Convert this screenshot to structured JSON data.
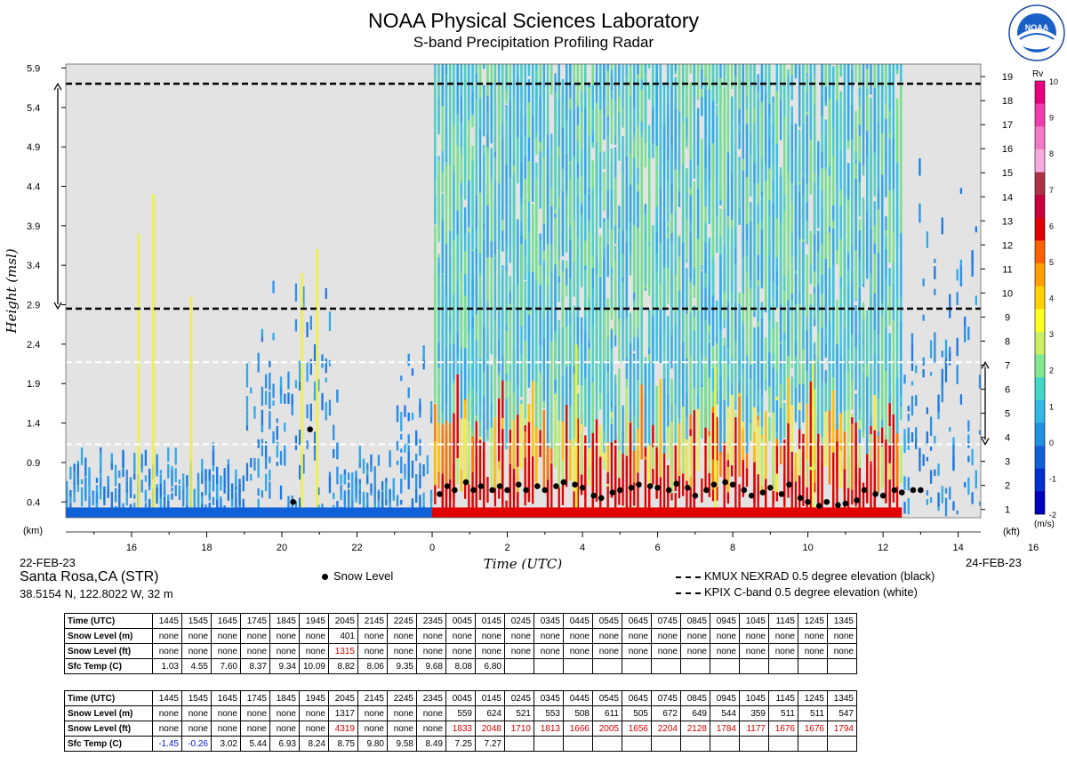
{
  "header": {
    "title": "NOAA Physical Sciences Laboratory",
    "subtitle": "S-band Precipitation Profiling Radar",
    "logo_text": "NOAA"
  },
  "chart_data": {
    "type": "heatmap",
    "ylabel": "Height (msl)",
    "xlabel": "Time (UTC)",
    "y_unit_left": "(km)",
    "y_unit_right": "(kft)",
    "y_ticks_km": [
      "0.4",
      "0.9",
      "1.4",
      "1.9",
      "2.4",
      "2.9",
      "3.4",
      "3.9",
      "4.4",
      "4.9",
      "5.4",
      "5.9"
    ],
    "y_ticks_kft": [
      "1",
      "2",
      "3",
      "4",
      "5",
      "6",
      "7",
      "8",
      "9",
      "10",
      "11",
      "12",
      "13",
      "14",
      "15",
      "16",
      "17",
      "18",
      "19"
    ],
    "ylim_km": [
      0.2,
      5.95
    ],
    "x_ticks": [
      "16",
      "18",
      "20",
      "22",
      "0",
      "2",
      "4",
      "6",
      "8",
      "10",
      "12",
      "14",
      "16",
      "18",
      "20",
      "22",
      "0",
      "2",
      "4",
      "6",
      "8",
      "10",
      "12",
      "14"
    ],
    "x_start_label": "22-FEB-23",
    "x_end_label": "24-FEB-23",
    "colorbar": {
      "title": "Rv",
      "unit": "(m/s)",
      "ticks": [
        "10",
        "9",
        "8",
        "7",
        "6",
        "5",
        "4",
        "3",
        "2",
        "1",
        "0",
        "-1",
        "-2"
      ],
      "colors": [
        "#e6007e",
        "#f03cb0",
        "#f578c8",
        "#f8aadc",
        "#b0304a",
        "#c8003c",
        "#e00000",
        "#ff6000",
        "#ffa000",
        "#ffd200",
        "#ffff20",
        "#c8f060",
        "#80e890",
        "#40d8c8",
        "#30b8e8",
        "#2090e0",
        "#1060d8",
        "#0030d0",
        "#0000c0"
      ]
    },
    "reference_lines": [
      {
        "name": "KMUX NEXRAD 0.5 degree elevation (black)",
        "color": "#000000",
        "levels_km": [
          5.7,
          2.85
        ]
      },
      {
        "name": "KPIX C-band 0.5 degree elevation (white)",
        "color": "#ffffff",
        "levels_km": [
          2.17,
          1.13
        ]
      }
    ],
    "series": [
      {
        "name": "Snow Level",
        "type": "scatter",
        "points": [
          [
            20.3,
            0.4
          ],
          [
            20.75,
            1.32
          ],
          [
            24.2,
            0.5
          ],
          [
            24.4,
            0.6
          ],
          [
            24.6,
            0.55
          ],
          [
            24.9,
            0.65
          ],
          [
            25.1,
            0.55
          ],
          [
            25.3,
            0.6
          ],
          [
            25.6,
            0.55
          ],
          [
            25.8,
            0.6
          ],
          [
            26.0,
            0.55
          ],
          [
            26.3,
            0.62
          ],
          [
            26.5,
            0.55
          ],
          [
            26.8,
            0.6
          ],
          [
            27.0,
            0.55
          ],
          [
            27.3,
            0.6
          ],
          [
            27.5,
            0.65
          ],
          [
            27.8,
            0.62
          ],
          [
            28.0,
            0.58
          ],
          [
            28.3,
            0.48
          ],
          [
            28.5,
            0.45
          ],
          [
            28.8,
            0.52
          ],
          [
            29.0,
            0.55
          ],
          [
            29.3,
            0.58
          ],
          [
            29.5,
            0.62
          ],
          [
            29.8,
            0.6
          ],
          [
            30.0,
            0.58
          ],
          [
            30.3,
            0.55
          ],
          [
            30.5,
            0.63
          ],
          [
            30.8,
            0.58
          ],
          [
            31.0,
            0.48
          ],
          [
            31.3,
            0.55
          ],
          [
            31.5,
            0.62
          ],
          [
            31.8,
            0.65
          ],
          [
            32.0,
            0.62
          ],
          [
            32.3,
            0.55
          ],
          [
            32.5,
            0.48
          ],
          [
            32.8,
            0.52
          ],
          [
            33.0,
            0.58
          ],
          [
            33.3,
            0.5
          ],
          [
            33.5,
            0.62
          ],
          [
            33.8,
            0.45
          ],
          [
            34.0,
            0.4
          ],
          [
            34.3,
            0.35
          ],
          [
            34.5,
            0.4
          ],
          [
            34.8,
            0.36
          ],
          [
            35.0,
            0.38
          ],
          [
            35.3,
            0.42
          ],
          [
            35.5,
            0.55
          ],
          [
            35.8,
            0.5
          ],
          [
            36.0,
            0.48
          ],
          [
            36.3,
            0.55
          ],
          [
            36.5,
            0.52
          ],
          [
            36.8,
            0.55
          ],
          [
            37.0,
            0.55
          ]
        ]
      }
    ]
  },
  "station": {
    "name": "Santa Rosa,CA (STR)",
    "coords": "38.5154 N, 122.8022 W, 32 m"
  },
  "legend": {
    "snow_level": "Snow Level",
    "kmux": "KMUX NEXRAD 0.5 degree elevation (black)",
    "kpix": "KPIX C-band 0.5 degree elevation (white)"
  },
  "tables": [
    {
      "rows": [
        {
          "label": "Time (UTC)",
          "values": [
            "1445",
            "1545",
            "1645",
            "1745",
            "1845",
            "1945",
            "2045",
            "2145",
            "2245",
            "2345",
            "0045",
            "0145",
            "0245",
            "0345",
            "0445",
            "0545",
            "0645",
            "0745",
            "0845",
            "0945",
            "1045",
            "1145",
            "1245",
            "1345"
          ]
        },
        {
          "label": "Snow Level (m)",
          "values": [
            "none",
            "none",
            "none",
            "none",
            "none",
            "none",
            "401",
            "none",
            "none",
            "none",
            "none",
            "none",
            "none",
            "none",
            "none",
            "none",
            "none",
            "none",
            "none",
            "none",
            "none",
            "none",
            "none",
            "none"
          ]
        },
        {
          "label": "Snow Level (ft)",
          "values": [
            "none",
            "none",
            "none",
            "none",
            "none",
            "none",
            "1315",
            "none",
            "none",
            "none",
            "none",
            "none",
            "none",
            "none",
            "none",
            "none",
            "none",
            "none",
            "none",
            "none",
            "none",
            "none",
            "none",
            "none"
          ]
        },
        {
          "label": "Sfc Temp (C)",
          "values": [
            "1.03",
            "4.55",
            "7.60",
            "8.37",
            "9.34",
            "10.09",
            "8.82",
            "8.06",
            "9.35",
            "9.68",
            "8.08",
            "6.80",
            "",
            "",
            "",
            "",
            "",
            "",
            "",
            "",
            "",
            "",
            "",
            ""
          ]
        }
      ]
    },
    {
      "rows": [
        {
          "label": "Time (UTC)",
          "values": [
            "1445",
            "1545",
            "1645",
            "1745",
            "1845",
            "1945",
            "2045",
            "2145",
            "2245",
            "2345",
            "0045",
            "0145",
            "0245",
            "0345",
            "0445",
            "0545",
            "0645",
            "0745",
            "0845",
            "0945",
            "1045",
            "1145",
            "1245",
            "1345"
          ]
        },
        {
          "label": "Snow Level (m)",
          "values": [
            "none",
            "none",
            "none",
            "none",
            "none",
            "none",
            "1317",
            "none",
            "none",
            "none",
            "559",
            "624",
            "521",
            "553",
            "508",
            "611",
            "505",
            "672",
            "649",
            "544",
            "359",
            "511",
            "511",
            "547"
          ]
        },
        {
          "label": "Snow Level (ft)",
          "values": [
            "none",
            "none",
            "none",
            "none",
            "none",
            "none",
            "4319",
            "none",
            "none",
            "none",
            "1833",
            "2048",
            "1710",
            "1813",
            "1666",
            "2005",
            "1656",
            "2204",
            "2128",
            "1784",
            "1177",
            "1676",
            "1676",
            "1794"
          ]
        },
        {
          "label": "Sfc Temp (C)",
          "values": [
            "-1.45",
            "-0.26",
            "3.02",
            "5.44",
            "6.93",
            "8.24",
            "8.75",
            "9.80",
            "9.58",
            "8.49",
            "7.25",
            "7.27",
            "",
            "",
            "",
            "",
            "",
            "",
            "",
            "",
            "",
            "",
            "",
            ""
          ]
        }
      ]
    }
  ]
}
